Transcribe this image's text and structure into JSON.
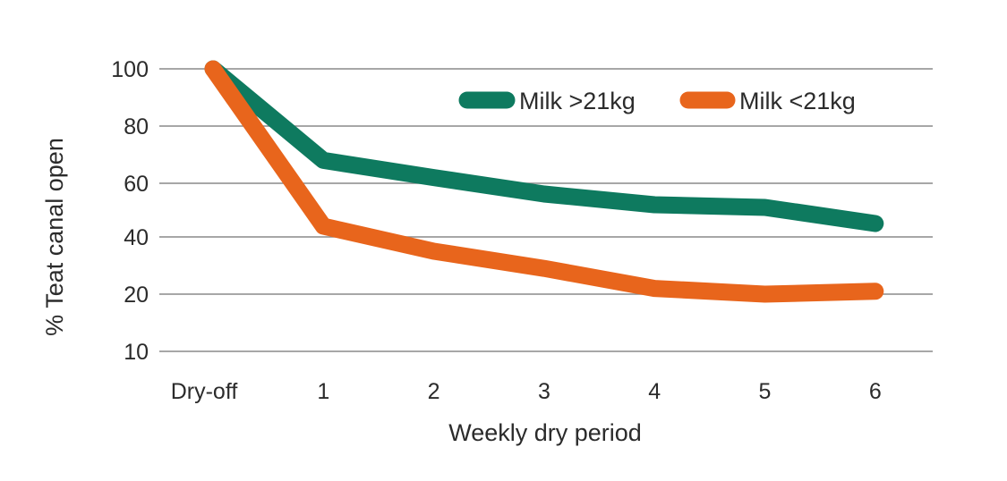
{
  "chart_data": {
    "type": "line",
    "xlabel": "Weekly dry period",
    "ylabel": "% Teat canal open",
    "categories": [
      "Dry-off",
      "1",
      "2",
      "3",
      "4",
      "5",
      "6"
    ],
    "y_ticks": [
      10,
      20,
      40,
      60,
      80,
      100
    ],
    "grid": true,
    "legend_position": "top-right",
    "series": [
      {
        "name": "Milk >21kg",
        "color": "#0e7a5f",
        "values": [
          100,
          68,
          62,
          56,
          52,
          51,
          45
        ]
      },
      {
        "name": "Milk <21kg",
        "color": "#e8651c",
        "values": [
          100,
          44,
          35,
          29,
          22,
          20,
          21
        ]
      }
    ]
  }
}
